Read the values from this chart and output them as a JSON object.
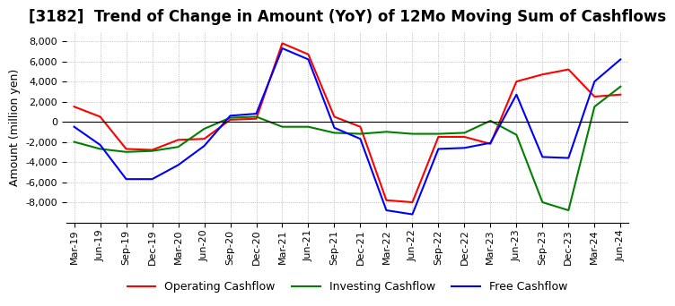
{
  "title": "[3182]  Trend of Change in Amount (YoY) of 12Mo Moving Sum of Cashflows",
  "ylabel": "Amount (million yen)",
  "x_labels": [
    "Mar-19",
    "Jun-19",
    "Sep-19",
    "Dec-19",
    "Mar-20",
    "Jun-20",
    "Sep-20",
    "Dec-20",
    "Mar-21",
    "Jun-21",
    "Sep-21",
    "Dec-21",
    "Mar-22",
    "Jun-22",
    "Sep-22",
    "Dec-22",
    "Mar-23",
    "Jun-23",
    "Sep-23",
    "Dec-23",
    "Mar-24",
    "Jun-24"
  ],
  "operating": [
    1500,
    500,
    -2700,
    -2800,
    -1800,
    -1700,
    200,
    300,
    7800,
    6700,
    500,
    -500,
    -7800,
    -8000,
    -1500,
    -1500,
    -2200,
    4000,
    4700,
    5200,
    2500,
    2700
  ],
  "investing": [
    -2000,
    -2700,
    -3000,
    -2900,
    -2500,
    -700,
    400,
    500,
    -500,
    -500,
    -1100,
    -1200,
    -1000,
    -1200,
    -1200,
    -1100,
    100,
    -1300,
    -8000,
    -8800,
    1500,
    3500
  ],
  "free": [
    -500,
    -2300,
    -5700,
    -5700,
    -4300,
    -2400,
    600,
    800,
    7300,
    6200,
    -600,
    -1700,
    -8800,
    -9200,
    -2700,
    -2600,
    -2100,
    2700,
    -3500,
    -3600,
    4000,
    6200
  ],
  "operating_color": "#ff0000",
  "investing_color": "#008000",
  "free_color": "#0000ff",
  "ylim": [
    -10000,
    9000
  ],
  "yticks": [
    -8000,
    -6000,
    -4000,
    -2000,
    0,
    2000,
    4000,
    6000,
    8000
  ],
  "background_color": "#ffffff",
  "title_fontsize": 12,
  "axis_fontsize": 8,
  "legend_fontsize": 9,
  "grid_color": "#aaaaaa",
  "grid_style": ":"
}
